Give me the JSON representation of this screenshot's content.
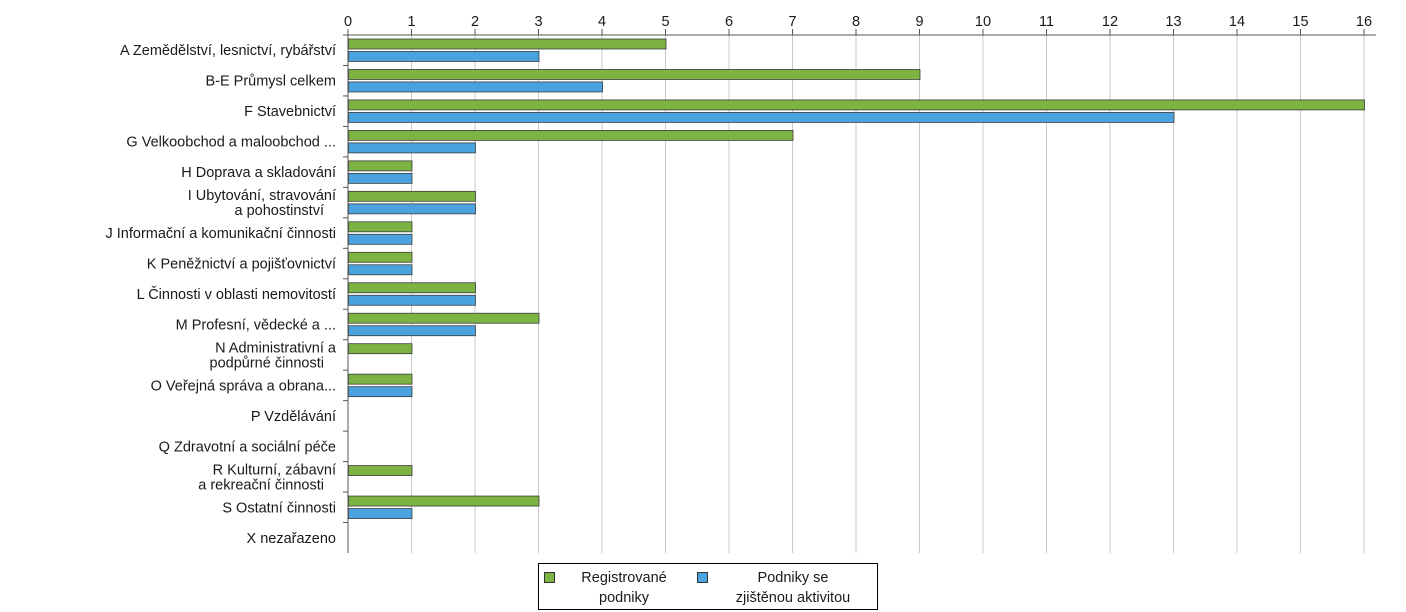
{
  "chart_data": {
    "type": "bar",
    "orientation": "horizontal",
    "categories": [
      [
        "A Zemědělství, lesnictví, rybářství"
      ],
      [
        "B-E Průmysl celkem"
      ],
      [
        "F Stavebnictví"
      ],
      [
        "G Velkoobchod a maloobchod ..."
      ],
      [
        "H Doprava a skladování"
      ],
      [
        "I Ubytování, stravování",
        "a pohostinství"
      ],
      [
        "J Informační a komunikační činnosti"
      ],
      [
        "K Peněžnictví a pojišťovnictví"
      ],
      [
        "L Činnosti v oblasti nemovitostí"
      ],
      [
        "M Profesní, vědecké a ..."
      ],
      [
        "N Administrativní a",
        "podpůrné činnosti"
      ],
      [
        "O Veřejná správa a obrana..."
      ],
      [
        "P Vzdělávání"
      ],
      [
        "Q  Zdravotní a sociální péče"
      ],
      [
        "R Kulturní, zábavní",
        "a rekreační činnosti"
      ],
      [
        "S Ostatní činnosti"
      ],
      [
        "X nezařazeno"
      ]
    ],
    "series": [
      {
        "name": "Registrované podniky",
        "legend_lines": [
          "Registrované",
          "podniky"
        ],
        "color": "#7cb342",
        "values": [
          5,
          9,
          16,
          7,
          1,
          2,
          1,
          1,
          2,
          3,
          1,
          1,
          0,
          0,
          1,
          3,
          0
        ]
      },
      {
        "name": "Podniky se zjištěnou aktivitou",
        "legend_lines": [
          "Podniky se",
          "zjištěnou aktivitou"
        ],
        "color": "#4aa3df",
        "values": [
          3,
          4,
          13,
          2,
          1,
          2,
          1,
          1,
          2,
          2,
          0,
          1,
          0,
          0,
          0,
          1,
          0
        ]
      }
    ],
    "xlim": [
      0,
      16
    ],
    "xticks": [
      0,
      1,
      2,
      3,
      4,
      5,
      6,
      7,
      8,
      9,
      10,
      11,
      12,
      13,
      14,
      15,
      16
    ],
    "x_axis_position": "top",
    "grid": true,
    "legend_position": "bottom-center"
  }
}
